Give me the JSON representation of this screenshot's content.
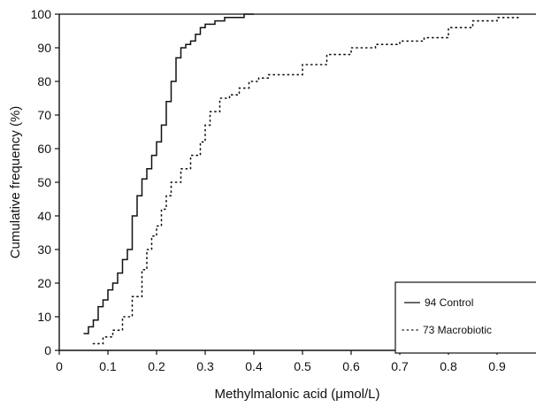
{
  "chart_data": {
    "type": "line",
    "title": "",
    "xlabel": "Methylmalonic acid (μmol/L)",
    "ylabel": "Cumulative frequency (%)",
    "xlim": [
      0,
      0.98
    ],
    "ylim": [
      0,
      100
    ],
    "x_ticks": [
      "0",
      "0.1",
      "0.2",
      "0.3",
      "0.4",
      "0.5",
      "0.6",
      "0.7",
      "0.8",
      "0.9"
    ],
    "y_ticks": [
      "0",
      "10",
      "20",
      "30",
      "40",
      "50",
      "60",
      "70",
      "80",
      "90",
      "100"
    ],
    "grid": false,
    "legend_position": "bottom-right",
    "series": [
      {
        "name": "94 Control",
        "style": "solid",
        "color": "#111111",
        "x": [
          0.05,
          0.06,
          0.07,
          0.08,
          0.09,
          0.1,
          0.11,
          0.12,
          0.13,
          0.14,
          0.15,
          0.16,
          0.17,
          0.18,
          0.19,
          0.2,
          0.21,
          0.22,
          0.23,
          0.24,
          0.25,
          0.26,
          0.27,
          0.28,
          0.29,
          0.3,
          0.32,
          0.34,
          0.36,
          0.38,
          0.4
        ],
        "y": [
          5,
          7,
          9,
          13,
          15,
          18,
          20,
          23,
          27,
          30,
          40,
          46,
          51,
          54,
          58,
          62,
          67,
          74,
          80,
          87,
          90,
          91,
          92,
          94,
          96,
          97,
          98,
          99,
          99,
          100,
          100
        ]
      },
      {
        "name": "73 Macrobiotic",
        "style": "dotted",
        "color": "#111111",
        "x": [
          0.07,
          0.09,
          0.11,
          0.13,
          0.15,
          0.17,
          0.18,
          0.19,
          0.2,
          0.21,
          0.22,
          0.23,
          0.25,
          0.27,
          0.29,
          0.3,
          0.31,
          0.33,
          0.35,
          0.37,
          0.39,
          0.41,
          0.43,
          0.45,
          0.5,
          0.55,
          0.6,
          0.65,
          0.7,
          0.75,
          0.8,
          0.85,
          0.9,
          0.95
        ],
        "y": [
          2,
          4,
          6,
          10,
          16,
          24,
          30,
          34,
          37,
          42,
          46,
          50,
          54,
          58,
          62,
          67,
          71,
          75,
          76,
          78,
          80,
          81,
          82,
          82,
          85,
          88,
          90,
          91,
          92,
          93,
          96,
          98,
          99,
          99
        ]
      }
    ]
  }
}
